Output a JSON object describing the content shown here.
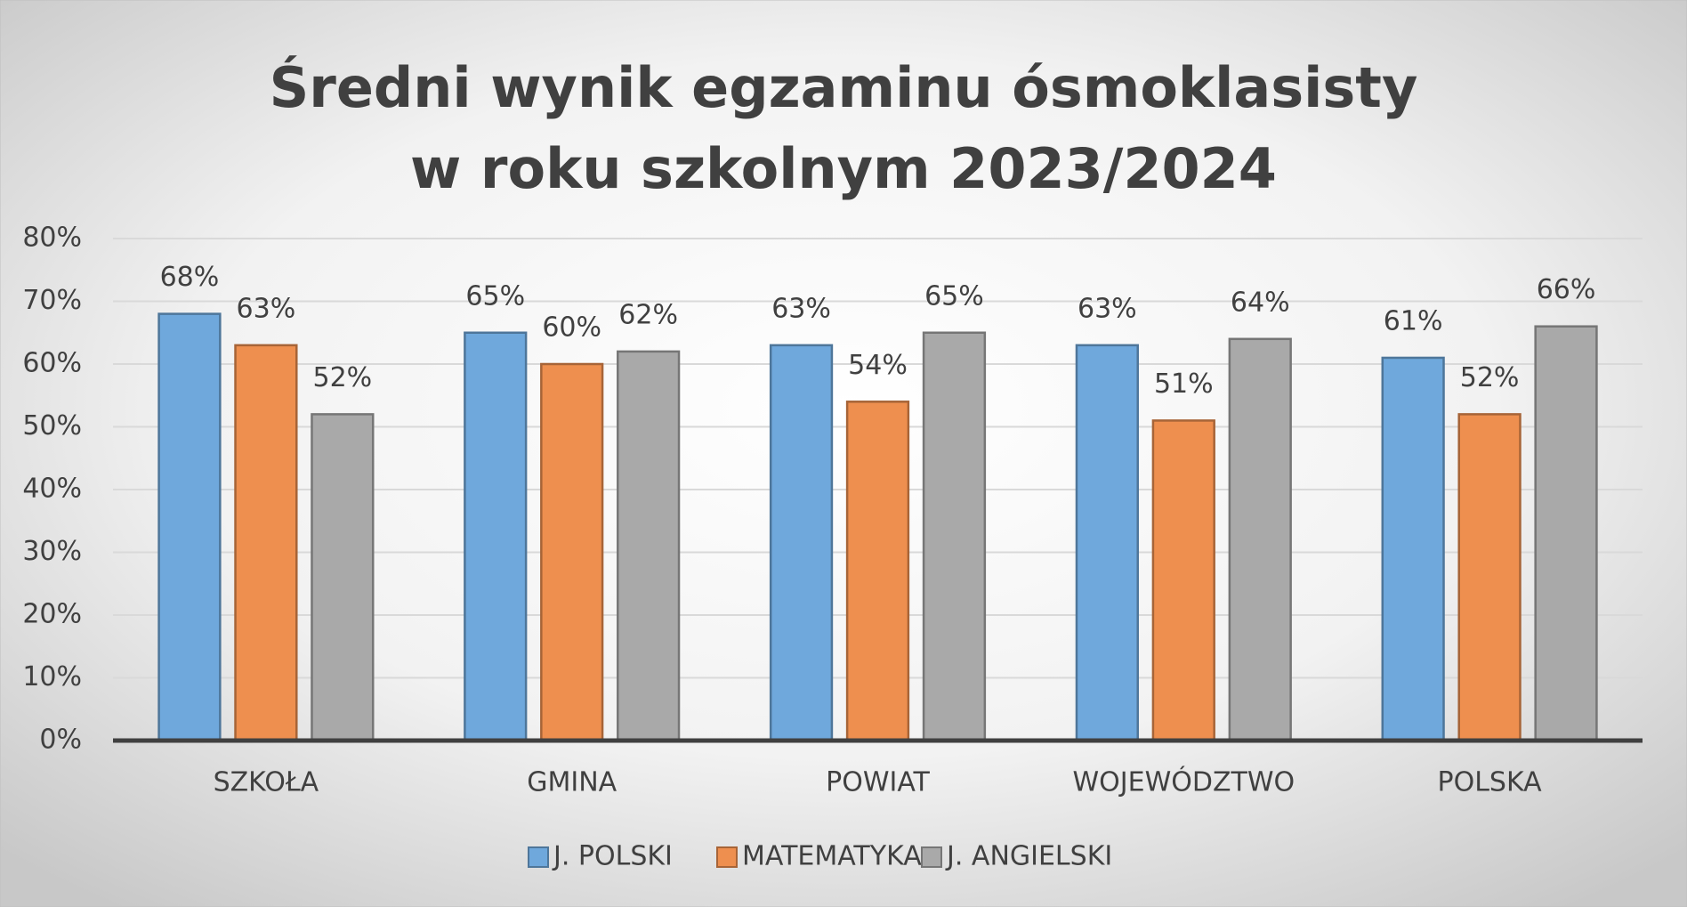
{
  "chart_data": {
    "type": "bar",
    "title": [
      "Średni wynik egzaminu ósmoklasisty",
      "w roku szkolnym 2023/2024"
    ],
    "categories": [
      "SZKOŁA",
      "GMINA",
      "POWIAT",
      "WOJEWÓDZTWO",
      "POLSKA"
    ],
    "series": [
      {
        "name": "J. POLSKI",
        "color": "#6fa8dc",
        "values": [
          68,
          65,
          63,
          63,
          61
        ],
        "value_labels": [
          "68%",
          "65%",
          "63%",
          "63%",
          "61%"
        ]
      },
      {
        "name": "MATEMATYKA",
        "color": "#ee8f4f",
        "values": [
          63,
          60,
          54,
          51,
          52
        ],
        "value_labels": [
          "63%",
          "60%",
          "54%",
          "51%",
          "52%"
        ]
      },
      {
        "name": "J. ANGIELSKI",
        "color": "#a9a9a9",
        "values": [
          52,
          62,
          65,
          64,
          66
        ],
        "value_labels": [
          "52%",
          "62%",
          "65%",
          "64%",
          "66%"
        ]
      }
    ],
    "ylim": [
      0,
      80
    ],
    "yticks": [
      {
        "value": 0,
        "label": "0%"
      },
      {
        "value": 10,
        "label": "10%"
      },
      {
        "value": 20,
        "label": "20%"
      },
      {
        "value": 30,
        "label": "30%"
      },
      {
        "value": 40,
        "label": "40%"
      },
      {
        "value": 50,
        "label": "50%"
      },
      {
        "value": 60,
        "label": "60%"
      },
      {
        "value": 70,
        "label": "70%"
      },
      {
        "value": 80,
        "label": "80%"
      }
    ],
    "grid": true,
    "legend": "bottom"
  }
}
